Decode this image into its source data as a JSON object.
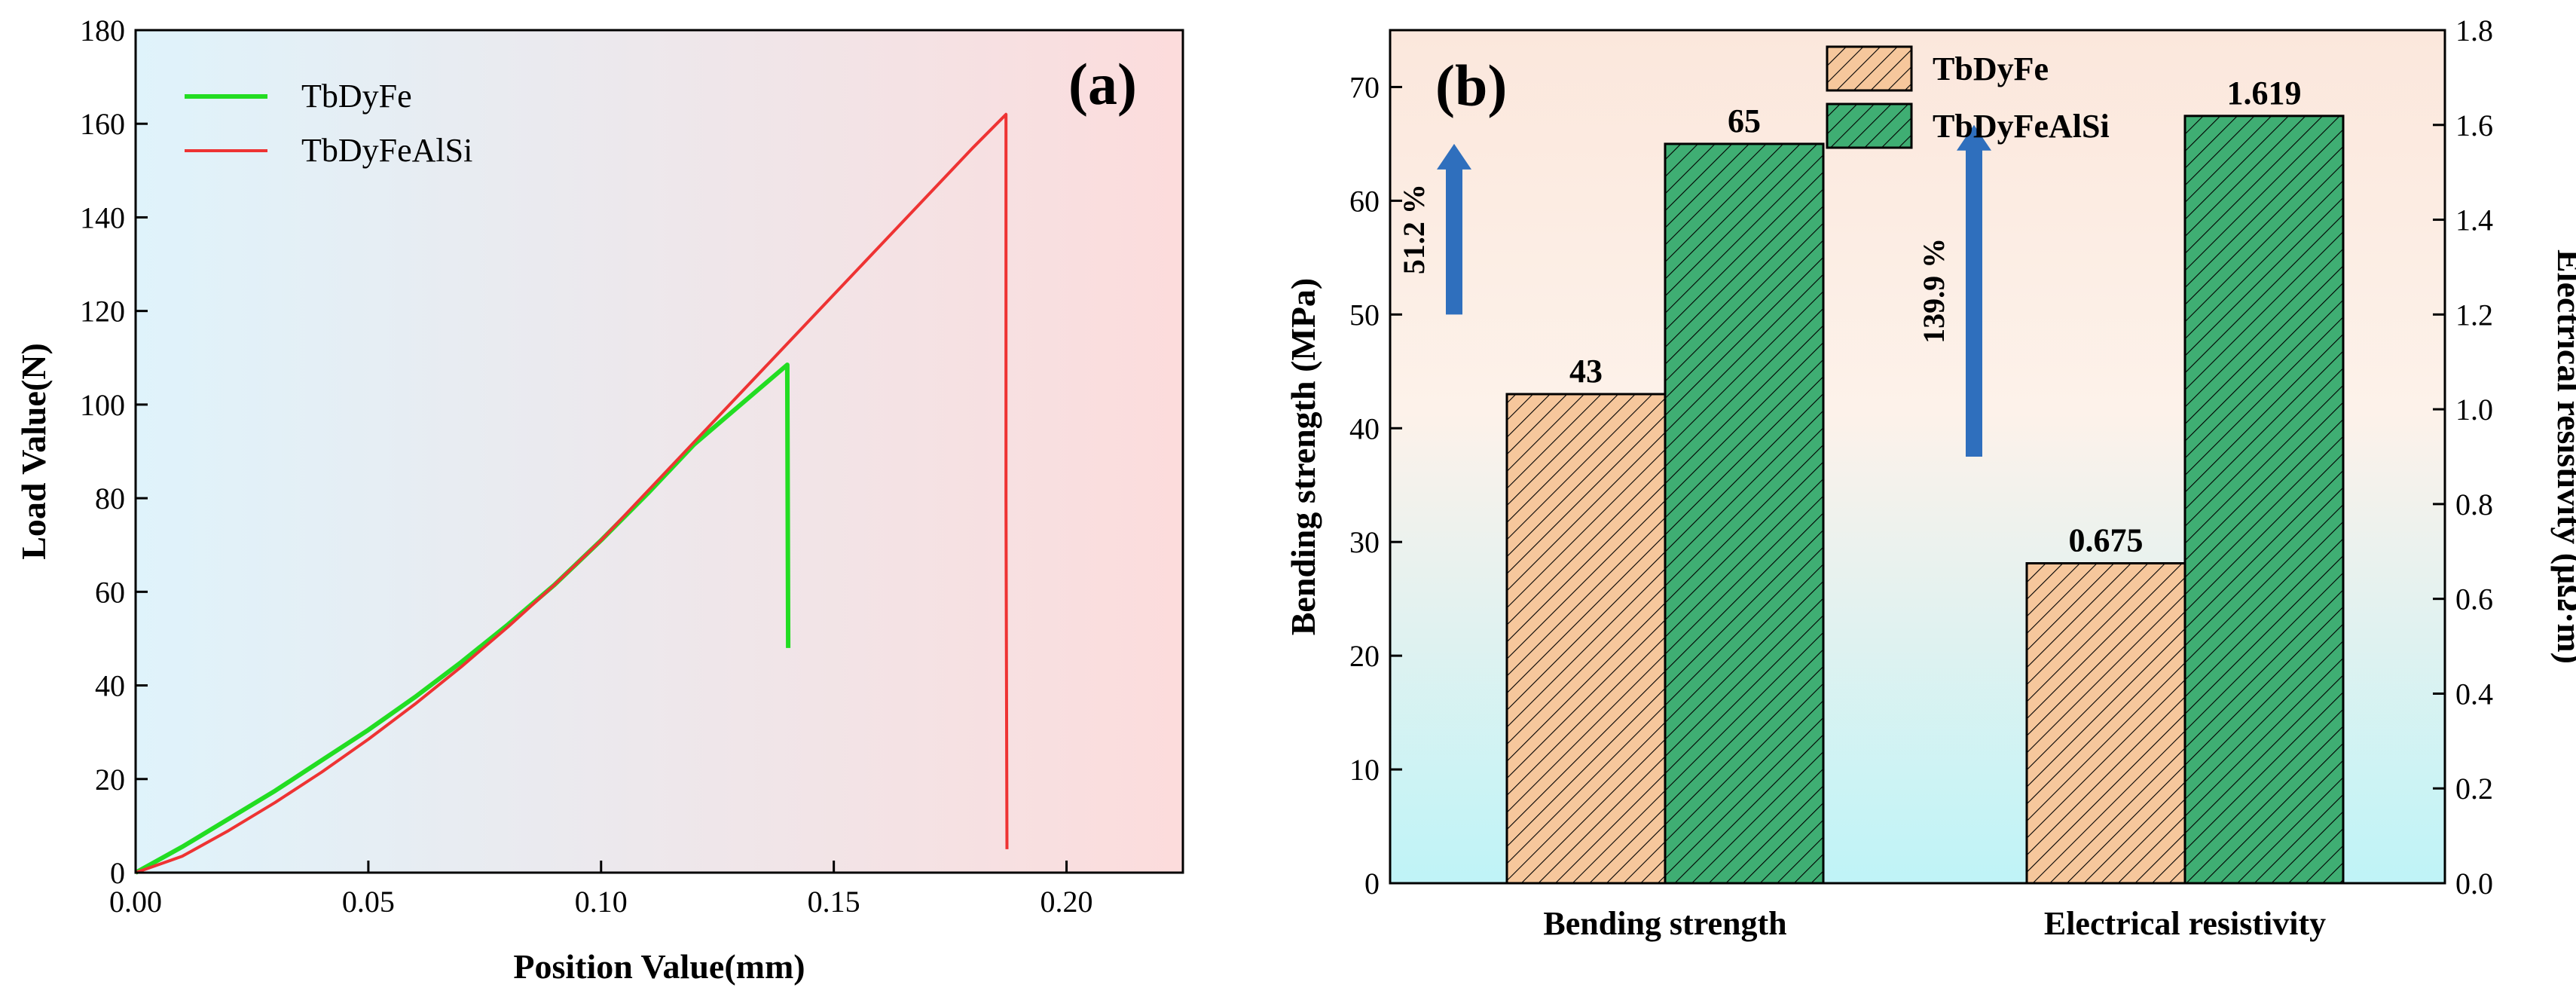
{
  "colors": {
    "tbdyfe_line": "#22dd22",
    "tbdyfealsi_line": "#ee3333",
    "bar_tbdyfe": "#f6c79c",
    "bar_tbdyfealsi": "#3fae73",
    "arrow": "#2f6fbd",
    "bg_a_left": "#dff3fb",
    "bg_a_right": "#fcdcdc",
    "bg_b_top": "#fbe7dc",
    "bg_b_bottom": "#bff3f7"
  },
  "chart_data": [
    {
      "type": "line",
      "panel_label": "(a)",
      "xlabel": "Position Value(mm)",
      "ylabel": "Load Value(N)",
      "xlim": [
        0,
        0.225
      ],
      "ylim": [
        0,
        180
      ],
      "xticks": [
        0.0,
        0.05,
        0.1,
        0.15,
        0.2
      ],
      "xtick_labels": [
        "0.00",
        "0.05",
        "0.10",
        "0.15",
        "0.20"
      ],
      "yticks": [
        0,
        20,
        40,
        60,
        80,
        100,
        120,
        140,
        160,
        180
      ],
      "ytick_labels": [
        "0",
        "20",
        "40",
        "60",
        "80",
        "100",
        "120",
        "140",
        "160",
        "180"
      ],
      "legend_position": "top-left",
      "series": [
        {
          "name": "TbDyFe",
          "color_key": "tbdyfe_line",
          "x": [
            0,
            0.01,
            0.02,
            0.03,
            0.04,
            0.05,
            0.06,
            0.07,
            0.08,
            0.09,
            0.1,
            0.11,
            0.12,
            0.13,
            0.14,
            0.14,
            0.1402,
            0.1402
          ],
          "y": [
            0,
            5.5,
            11.5,
            17.5,
            24,
            30.5,
            37.5,
            45,
            53,
            61.5,
            71,
            81,
            91.5,
            100,
            108.5,
            108.5,
            48,
            48
          ]
        },
        {
          "name": "TbDyFeAlSi",
          "color_key": "tbdyfealsi_line",
          "x": [
            0,
            0.01,
            0.02,
            0.03,
            0.04,
            0.05,
            0.06,
            0.07,
            0.08,
            0.09,
            0.1,
            0.11,
            0.12,
            0.13,
            0.14,
            0.15,
            0.16,
            0.17,
            0.18,
            0.187,
            0.187,
            0.1872
          ],
          "y": [
            0,
            3.5,
            9,
            15,
            21.5,
            28.5,
            36,
            44,
            52.5,
            61.5,
            71,
            81.5,
            92,
            102.5,
            113,
            123.5,
            134,
            144.5,
            155,
            162,
            80,
            5
          ]
        }
      ]
    },
    {
      "type": "bar",
      "panel_label": "(b)",
      "categories": [
        "Bending strength",
        "Electrical resistivity"
      ],
      "ylabel": "Bending strength (MPa)",
      "y2label": "Electrical resistivity (μΩ·m)",
      "ylim": [
        0,
        75
      ],
      "y2lim": [
        0,
        1.8
      ],
      "yticks": [
        0,
        10,
        20,
        30,
        40,
        50,
        60,
        70
      ],
      "ytick_labels": [
        "0",
        "10",
        "20",
        "30",
        "40",
        "50",
        "60",
        "70"
      ],
      "y2ticks": [
        0,
        0.2,
        0.4,
        0.6,
        0.8,
        1.0,
        1.2,
        1.4,
        1.6,
        1.8
      ],
      "y2tick_labels": [
        "0.0",
        "0.2",
        "0.4",
        "0.6",
        "0.8",
        "1.0",
        "1.2",
        "1.4",
        "1.6",
        "1.8"
      ],
      "legend_position": "top-center",
      "series": [
        {
          "name": "TbDyFe",
          "color_key": "bar_tbdyfe",
          "values": [
            43,
            0.675
          ],
          "value_labels": [
            "43",
            "0.675"
          ]
        },
        {
          "name": "TbDyFeAlSi",
          "color_key": "bar_tbdyfealsi",
          "values": [
            65,
            1.619
          ],
          "value_labels": [
            "65",
            "1.619"
          ]
        }
      ],
      "value_axis": [
        "left",
        "right"
      ],
      "annotations": [
        {
          "category": "Bending strength",
          "text": "51.2 %",
          "from": 50,
          "to": 65
        },
        {
          "category": "Electrical resistivity",
          "text": "139.9 %",
          "from": 0.9,
          "to": 1.6
        }
      ]
    }
  ]
}
